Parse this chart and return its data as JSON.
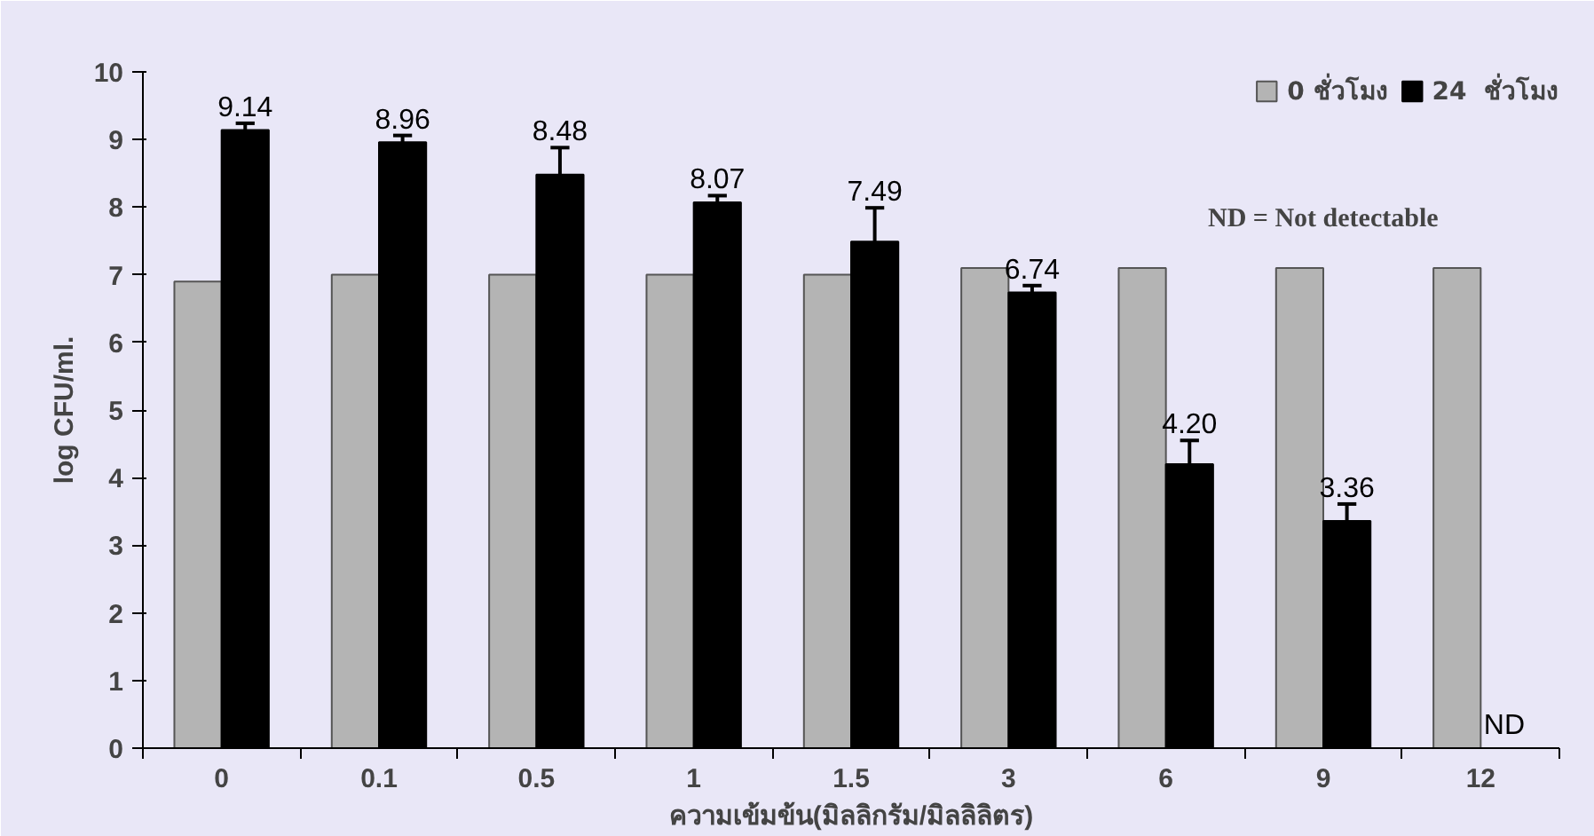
{
  "chart_data": {
    "type": "bar",
    "xlabel": "ความเข้มข้น(มิลลิกรัม/มิลลิลิตร)",
    "ylabel": "log CFU/ml.",
    "categories": [
      "0",
      "0.1",
      "0.5",
      "1",
      "1.5",
      "3",
      "6",
      "9",
      "12"
    ],
    "series": [
      {
        "name": "0 ชั่วโมง",
        "color": "#b4b4b4",
        "values": [
          6.9,
          7.0,
          7.0,
          7.0,
          7.0,
          7.1,
          7.1,
          7.1,
          7.1
        ]
      },
      {
        "name": "24  ชั่วโมง",
        "color": "#000000",
        "values": [
          9.14,
          8.96,
          8.48,
          8.07,
          7.49,
          6.74,
          4.2,
          3.36,
          null
        ],
        "errors": [
          0.1,
          0.1,
          0.4,
          0.1,
          0.5,
          0.1,
          0.35,
          0.25,
          null
        ],
        "value_labels": [
          "9.14",
          "8.96",
          "8.48",
          "8.07",
          "7.49",
          "6.74",
          "4.20",
          "3.36",
          "ND"
        ]
      }
    ],
    "ylim": [
      0,
      10
    ],
    "yticks": [
      0,
      1,
      2,
      3,
      4,
      5,
      6,
      7,
      8,
      9,
      10
    ],
    "grid": false,
    "legend": "top right",
    "annotations": [
      "ND = Not detectable"
    ]
  }
}
